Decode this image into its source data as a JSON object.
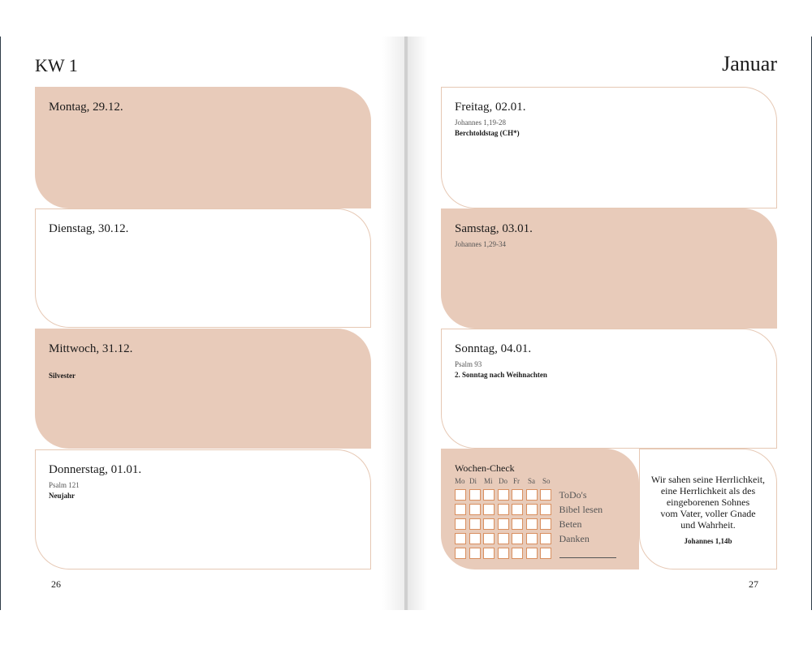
{
  "left_page": {
    "header": "KW 1",
    "page_number": "26",
    "days": [
      {
        "label": "Montag, 29.12.",
        "reading": "",
        "note": ""
      },
      {
        "label": "Dienstag, 30.12.",
        "reading": "",
        "note": ""
      },
      {
        "label": "Mittwoch, 31.12.",
        "reading": "",
        "note": "Silvester"
      },
      {
        "label": "Donnerstag, 01.01.",
        "reading": "Psalm 121",
        "note": "Neujahr"
      }
    ]
  },
  "right_page": {
    "header": "Januar",
    "page_number": "27",
    "days": [
      {
        "label": "Freitag, 02.01.",
        "reading": "Johannes 1,19-28",
        "note": "Berchtoldstag (CH*)"
      },
      {
        "label": "Samstag, 03.01.",
        "reading": "Johannes 1,29-34",
        "note": ""
      },
      {
        "label": "Sonntag, 04.01.",
        "reading": "Psalm 93",
        "note": "2. Sonntag nach Weihnachten"
      }
    ],
    "wochen_check": {
      "title": "Wochen-Check",
      "weekdays": [
        "Mo",
        "Di",
        "Mi",
        "Do",
        "Fr",
        "Sa",
        "So"
      ],
      "rows": [
        "ToDo's",
        "Bibel lesen",
        "Beten",
        "Danken",
        ""
      ]
    },
    "quote": {
      "lines": [
        "Wir sahen seine Herrlichkeit,",
        "eine Herrlichkeit als des",
        "eingeborenen Sohnes",
        "vom Vater, voller Gnade",
        "und Wahrheit."
      ],
      "reference": "Johannes 1,14b"
    }
  },
  "colors": {
    "accent_fill": "#e8cbba",
    "checkbox_border": "#d98f5f"
  }
}
